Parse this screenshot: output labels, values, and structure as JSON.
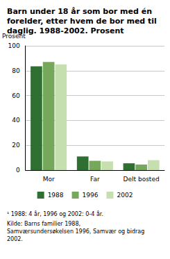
{
  "chart_data": {
    "type": "bar",
    "title": "Barn under 18 år som bor med én forelder, etter hvem de bor med til daglig. 1988-2002. Prosent",
    "y_label": "Prosent",
    "footnote": "¹ 1988: 4 år, 1996 og 2002: 0-4 år.",
    "source": "Kilde: Barns familier 1988, Samværsundersøkelsen 1996, Samvær og bidrag 2002.",
    "categories": [
      "Mor",
      "Far",
      "Delt bosted"
    ],
    "series": [
      {
        "name": "1988",
        "color": "#2f6f32",
        "values": [
          83.5,
          11,
          5.5
        ]
      },
      {
        "name": "1996",
        "color": "#76a85b",
        "values": [
          87,
          7.5,
          4.5
        ]
      },
      {
        "name": "2002",
        "color": "#c6dfae",
        "values": [
          85,
          7,
          8
        ]
      }
    ],
    "ylim": [
      0,
      100
    ],
    "yticks": [
      0,
      20,
      40,
      60,
      80,
      100
    ],
    "grid": true,
    "legend": "bottom"
  }
}
